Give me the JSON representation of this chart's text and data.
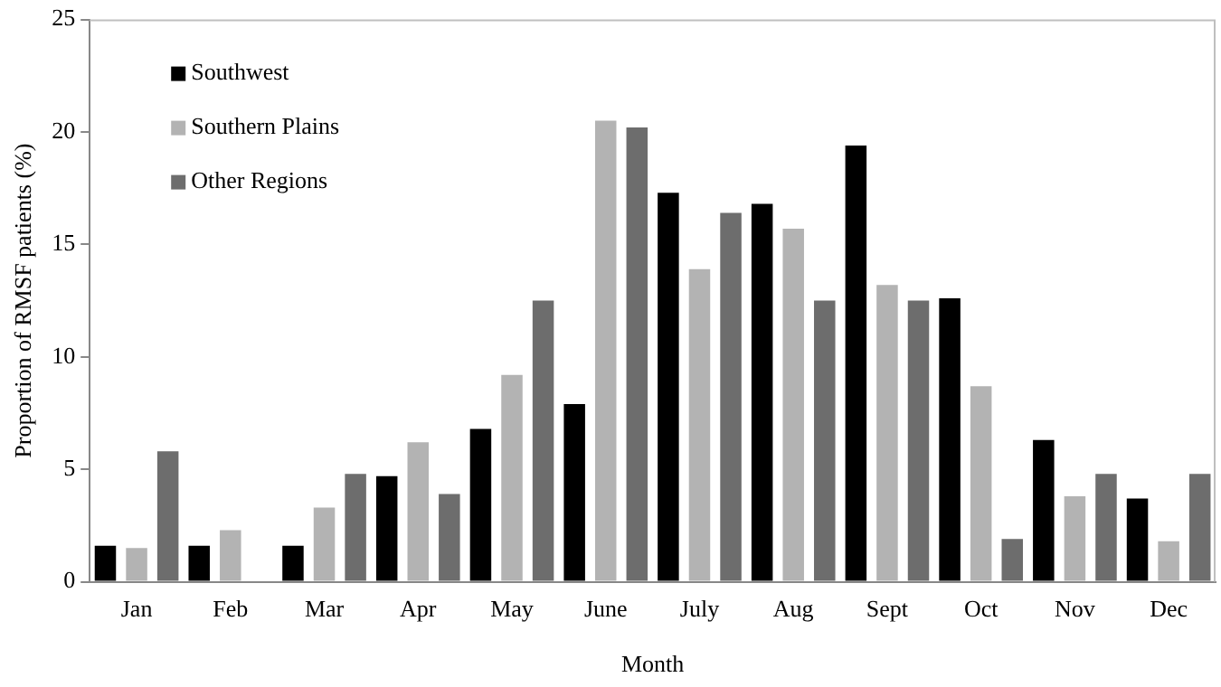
{
  "chart_data": {
    "type": "bar",
    "xlabel": "Month",
    "ylabel": "Proportion of RMSF patients (%)",
    "categories": [
      "Jan",
      "Feb",
      "Mar",
      "Apr",
      "May",
      "June",
      "July",
      "Aug",
      "Sept",
      "Oct",
      "Nov",
      "Dec"
    ],
    "series": [
      {
        "name": "Southwest",
        "color": "#000000",
        "values": [
          1.6,
          1.6,
          1.6,
          4.7,
          6.8,
          7.9,
          17.3,
          16.8,
          19.4,
          12.6,
          6.3,
          3.7
        ]
      },
      {
        "name": "Southern Plains",
        "color": "#b3b3b3",
        "values": [
          1.5,
          2.3,
          3.3,
          6.2,
          9.2,
          20.5,
          13.9,
          15.7,
          13.2,
          8.7,
          3.8,
          1.8
        ]
      },
      {
        "name": "Other Regions",
        "color": "#6d6d6d",
        "values": [
          5.8,
          0,
          4.8,
          3.9,
          12.5,
          20.2,
          16.4,
          12.5,
          12.5,
          1.9,
          4.8,
          4.8
        ]
      }
    ],
    "ylim": [
      0,
      25
    ],
    "yticks": [
      0,
      5,
      10,
      15,
      20,
      25
    ],
    "grid": false,
    "legend": "top left"
  }
}
